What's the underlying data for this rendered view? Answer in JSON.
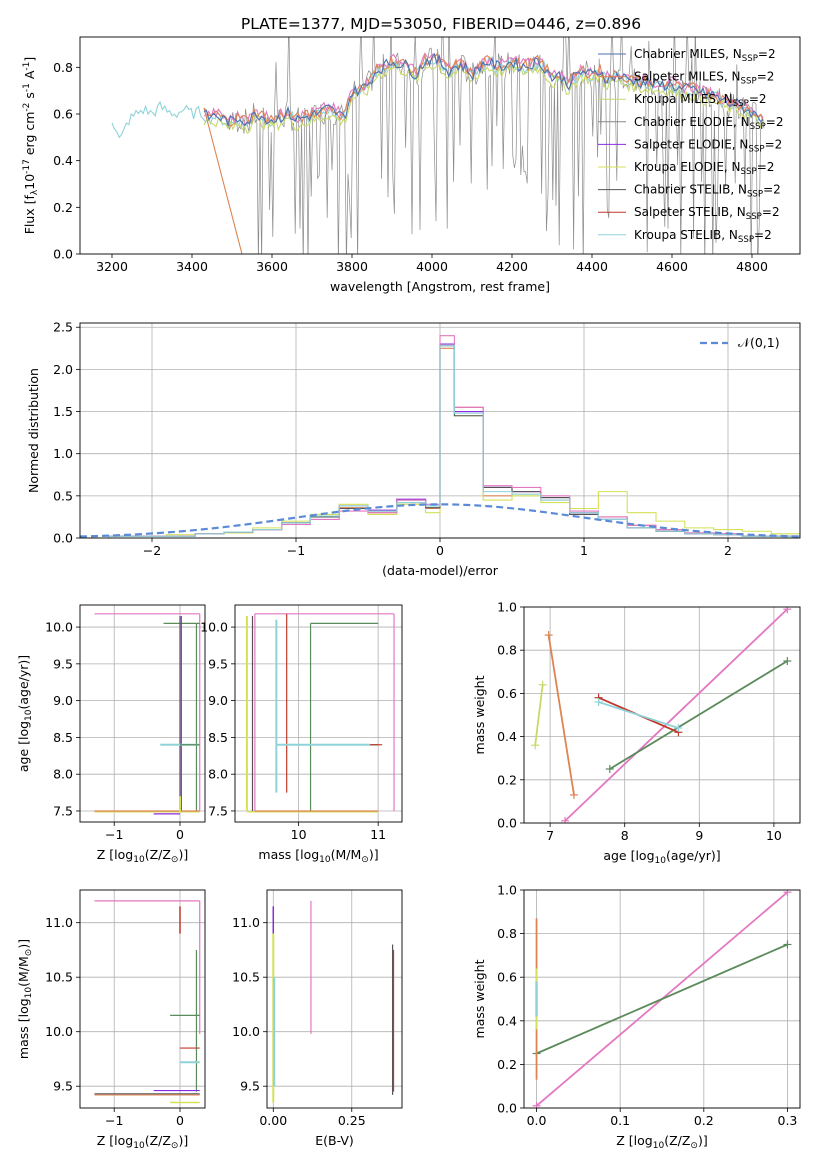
{
  "figure_title": "PLATE=1377, MJD=53050, FIBERID=0446, z=0.896",
  "colors": {
    "Chabrier MILES": "#4c72b0",
    "Salpeter MILES": "#dd8452",
    "Kroupa MILES": "#c9d86a",
    "Chabrier ELODIE": "#888888",
    "Salpeter ELODIE": "#8a2be2",
    "Kroupa ELODIE": "#d4e157",
    "Chabrier STELIB": "#555555",
    "Salpeter STELIB": "#c0392b",
    "Kroupa STELIB": "#8fd3d8",
    "pink": "#e377c2",
    "green": "#5b8a5b",
    "orange": "#dd8452",
    "normal": "#5b8bd6"
  },
  "chart_data": [
    {
      "id": "spectrum",
      "type": "line",
      "title": "PLATE=1377, MJD=53050, FIBERID=0446, z=0.896",
      "xlabel": "wavelength [Angstrom, rest frame]",
      "ylabel": "Flux [f$_\\lambda$10$^{-17}$ erg cm$^{-2}$ s$^{-1}$ A$^{-1}$]",
      "xlim": [
        3120,
        4920
      ],
      "ylim": [
        0,
        0.93
      ],
      "xticks": [
        3200,
        3400,
        3600,
        3800,
        4000,
        4200,
        4400,
        4600,
        4800
      ],
      "yticks": [
        0.0,
        0.2,
        0.4,
        0.6,
        0.8
      ],
      "grid": false,
      "legend_position": "top-right",
      "series": [
        {
          "name": "Chabrier MILES, N$_{SSP}$=2"
        },
        {
          "name": "Salpeter MILES, N$_{SSP}$=2"
        },
        {
          "name": "Kroupa MILES, N$_{SSP}$=2"
        },
        {
          "name": "Chabrier ELODIE, N$_{SSP}$=2"
        },
        {
          "name": "Salpeter ELODIE, N$_{SSP}$=2"
        },
        {
          "name": "Kroupa ELODIE, N$_{SSP}$=2"
        },
        {
          "name": "Chabrier STELIB, N$_{SSP}$=2"
        },
        {
          "name": "Salpeter STELIB, N$_{SSP}$=2"
        },
        {
          "name": "Kroupa STELIB, N$_{SSP}$=2"
        }
      ],
      "data_points": [
        [
          3205,
          0.55
        ],
        [
          3220,
          0.48
        ],
        [
          3240,
          0.57
        ],
        [
          3260,
          0.6
        ],
        [
          3280,
          0.62
        ],
        [
          3300,
          0.6
        ],
        [
          3320,
          0.63
        ],
        [
          3340,
          0.61
        ],
        [
          3360,
          0.6
        ],
        [
          3380,
          0.62
        ],
        [
          3400,
          0.6
        ],
        [
          3420,
          0.61
        ],
        [
          3440,
          0.58
        ],
        [
          3460,
          0.59
        ],
        [
          3480,
          0.57
        ],
        [
          3500,
          0.56
        ],
        [
          3520,
          0.58
        ],
        [
          3540,
          0.56
        ],
        [
          3560,
          0.6
        ],
        [
          3580,
          0.58
        ],
        [
          3600,
          0.57
        ],
        [
          3620,
          0.58
        ],
        [
          3640,
          0.6
        ],
        [
          3660,
          0.57
        ],
        [
          3680,
          0.58
        ],
        [
          3700,
          0.59
        ],
        [
          3720,
          0.6
        ],
        [
          3740,
          0.62
        ],
        [
          3760,
          0.6
        ],
        [
          3780,
          0.58
        ],
        [
          3800,
          0.69
        ],
        [
          3820,
          0.7
        ],
        [
          3840,
          0.72
        ],
        [
          3860,
          0.78
        ],
        [
          3880,
          0.8
        ],
        [
          3900,
          0.82
        ],
        [
          3920,
          0.81
        ],
        [
          3940,
          0.8
        ],
        [
          3960,
          0.76
        ],
        [
          3980,
          0.82
        ],
        [
          4000,
          0.83
        ],
        [
          4020,
          0.82
        ],
        [
          4040,
          0.78
        ],
        [
          4060,
          0.8
        ],
        [
          4080,
          0.8
        ],
        [
          4100,
          0.76
        ],
        [
          4120,
          0.8
        ],
        [
          4140,
          0.82
        ],
        [
          4160,
          0.8
        ],
        [
          4180,
          0.8
        ],
        [
          4200,
          0.82
        ],
        [
          4220,
          0.8
        ],
        [
          4240,
          0.8
        ],
        [
          4260,
          0.82
        ],
        [
          4280,
          0.8
        ],
        [
          4300,
          0.75
        ],
        [
          4320,
          0.76
        ],
        [
          4340,
          0.72
        ],
        [
          4360,
          0.76
        ],
        [
          4380,
          0.78
        ],
        [
          4400,
          0.76
        ],
        [
          4420,
          0.78
        ],
        [
          4440,
          0.74
        ],
        [
          4460,
          0.76
        ],
        [
          4480,
          0.75
        ],
        [
          4500,
          0.74
        ],
        [
          4520,
          0.73
        ],
        [
          4540,
          0.73
        ],
        [
          4560,
          0.72
        ],
        [
          4580,
          0.72
        ],
        [
          4600,
          0.72
        ],
        [
          4620,
          0.7
        ],
        [
          4640,
          0.7
        ],
        [
          4660,
          0.7
        ],
        [
          4680,
          0.68
        ],
        [
          4700,
          0.68
        ],
        [
          4720,
          0.66
        ],
        [
          4740,
          0.64
        ],
        [
          4760,
          0.64
        ],
        [
          4780,
          0.62
        ],
        [
          4800,
          0.6
        ],
        [
          4820,
          0.58
        ]
      ]
    },
    {
      "id": "residuals",
      "type": "line",
      "xlabel": "(data-model)/error",
      "ylabel": "Normed distribution",
      "xlim": [
        -2.5,
        2.5
      ],
      "ylim": [
        0,
        2.55
      ],
      "xticks": [
        -2,
        -1,
        0,
        1,
        2
      ],
      "yticks": [
        0.0,
        0.5,
        1.0,
        1.5,
        2.0,
        2.5
      ],
      "grid": true,
      "legend_position": "top-right",
      "legend": "$\\mathcal{N}(0,1)$",
      "bin_edges": [
        -2.5,
        -2.3,
        -2.1,
        -1.9,
        -1.7,
        -1.5,
        -1.3,
        -1.1,
        -0.9,
        -0.7,
        -0.5,
        -0.3,
        -0.1,
        0.0,
        0.1,
        0.3,
        0.5,
        0.7,
        0.9,
        1.1,
        1.3,
        1.5,
        1.7,
        1.9,
        2.1,
        2.3,
        2.5
      ],
      "series": [
        {
          "name": "Salpeter MILES",
          "color": "#dd8452",
          "values": [
            0.0,
            0.02,
            0.02,
            0.02,
            0.05,
            0.07,
            0.1,
            0.18,
            0.26,
            0.36,
            0.3,
            0.42,
            0.35,
            2.25,
            1.55,
            0.5,
            0.55,
            0.45,
            0.3,
            0.25,
            0.15,
            0.08,
            0.06,
            0.05,
            0.02,
            0.02
          ]
        },
        {
          "name": "Kroupa MILES",
          "color": "#d4e157",
          "values": [
            0.0,
            0.02,
            0.02,
            0.04,
            0.05,
            0.06,
            0.12,
            0.2,
            0.28,
            0.4,
            0.28,
            0.4,
            0.3,
            2.3,
            1.45,
            0.45,
            0.5,
            0.42,
            0.35,
            0.55,
            0.3,
            0.2,
            0.12,
            0.1,
            0.08,
            0.05
          ]
        },
        {
          "name": "Salpeter ELODIE",
          "color": "#8a2be2",
          "values": [
            0.0,
            0.02,
            0.02,
            0.02,
            0.05,
            0.07,
            0.1,
            0.18,
            0.25,
            0.38,
            0.33,
            0.46,
            0.38,
            2.3,
            1.5,
            0.6,
            0.55,
            0.48,
            0.3,
            0.22,
            0.12,
            0.08,
            0.05,
            0.04,
            0.02,
            0.02
          ]
        },
        {
          "name": "Chabrier STELIB",
          "color": "#555555",
          "values": [
            0.0,
            0.02,
            0.02,
            0.02,
            0.05,
            0.07,
            0.1,
            0.18,
            0.25,
            0.35,
            0.32,
            0.45,
            0.36,
            2.28,
            1.45,
            0.6,
            0.55,
            0.48,
            0.28,
            0.22,
            0.12,
            0.08,
            0.05,
            0.04,
            0.02,
            0.02
          ]
        },
        {
          "name": "pink",
          "color": "#e377c2",
          "values": [
            0.0,
            0.02,
            0.02,
            0.02,
            0.05,
            0.07,
            0.1,
            0.16,
            0.22,
            0.32,
            0.3,
            0.45,
            0.4,
            2.4,
            1.55,
            0.62,
            0.6,
            0.5,
            0.32,
            0.25,
            0.15,
            0.1,
            0.06,
            0.05,
            0.02,
            0.02
          ]
        },
        {
          "name": "Kroupa STELIB",
          "color": "#8fd3d8",
          "values": [
            0.0,
            0.02,
            0.02,
            0.02,
            0.05,
            0.07,
            0.1,
            0.18,
            0.26,
            0.38,
            0.32,
            0.42,
            0.38,
            2.28,
            1.48,
            0.55,
            0.52,
            0.45,
            0.3,
            0.22,
            0.12,
            0.08,
            0.05,
            0.04,
            0.02,
            0.02
          ]
        }
      ]
    },
    {
      "id": "z_age",
      "type": "line",
      "xlabel": "Z [log$_{10}$($Z/Z_\\odot$)]",
      "ylabel": "age  [log$_{10}$($age/yr$)]",
      "xlim": [
        -1.52,
        0.38
      ],
      "ylim": [
        7.35,
        10.3
      ],
      "xticks": [
        -1,
        0
      ],
      "yticks": [
        7.5,
        8.0,
        8.5,
        9.0,
        9.5,
        10.0
      ],
      "grid": true
    },
    {
      "id": "mass_age",
      "type": "line",
      "xlabel": "mass [log$_{10}$($M/M_\\odot$)]",
      "xlim": [
        9.2,
        11.3
      ],
      "ylim": [
        7.35,
        10.3
      ],
      "xticks": [
        10,
        11
      ],
      "yticks": [
        7.5,
        8.0,
        8.5,
        9.0,
        9.5,
        10.0
      ],
      "grid": true
    },
    {
      "id": "age_weight",
      "type": "line",
      "xlabel": "age  [log$_{10}$($age/yr$)]",
      "ylabel": "mass weight",
      "xlim": [
        6.65,
        10.35
      ],
      "ylim": [
        0,
        1.0
      ],
      "xticks": [
        7,
        8,
        9,
        10
      ],
      "yticks": [
        0.0,
        0.2,
        0.4,
        0.6,
        0.8,
        1.0
      ],
      "grid": true,
      "series": [
        {
          "name": "pink",
          "color": "#e377c2",
          "points": [
            [
              7.2,
              0.01
            ],
            [
              10.18,
              0.99
            ]
          ]
        },
        {
          "name": "green",
          "color": "#5b8a5b",
          "points": [
            [
              7.8,
              0.25
            ],
            [
              10.18,
              0.75
            ]
          ]
        },
        {
          "name": "orange",
          "color": "#dd8452",
          "points": [
            [
              6.98,
              0.87
            ],
            [
              7.32,
              0.13
            ]
          ]
        },
        {
          "name": "yellow",
          "color": "#c9d86a",
          "points": [
            [
              6.8,
              0.36
            ],
            [
              6.9,
              0.64
            ]
          ]
        },
        {
          "name": "red",
          "color": "#c0392b",
          "points": [
            [
              7.65,
              0.58
            ],
            [
              8.72,
              0.42
            ]
          ]
        },
        {
          "name": "cyan",
          "color": "#8fd3d8",
          "points": [
            [
              7.65,
              0.56
            ],
            [
              8.72,
              0.44
            ]
          ]
        }
      ]
    },
    {
      "id": "z_mass",
      "type": "line",
      "xlabel": "Z [log$_{10}$($Z/Z_\\odot$)]",
      "ylabel": "mass [log$_{10}$($M/M_\\odot$)]",
      "xlim": [
        -1.52,
        0.38
      ],
      "ylim": [
        9.3,
        11.3
      ],
      "xticks": [
        -1,
        0
      ],
      "yticks": [
        9.5,
        10.0,
        10.5,
        11.0
      ],
      "grid": true
    },
    {
      "id": "ebv_mass",
      "type": "line",
      "xlabel": "E(B-V)",
      "xlim": [
        -0.02,
        0.41
      ],
      "ylim": [
        9.3,
        11.3
      ],
      "xticks": [
        0.0,
        0.25
      ],
      "yticks": [
        9.5,
        10.0,
        10.5,
        11.0
      ],
      "grid": true
    },
    {
      "id": "z_weight",
      "type": "line",
      "xlabel": "Z [log$_{10}$($Z/Z_\\odot$)]",
      "ylabel": "mass weight",
      "xlim": [
        -0.015,
        0.315
      ],
      "ylim": [
        0,
        1.0
      ],
      "xticks": [
        0.0,
        0.1,
        0.2,
        0.3
      ],
      "yticks": [
        0.0,
        0.2,
        0.4,
        0.6,
        0.8,
        1.0
      ],
      "grid": true,
      "series": [
        {
          "name": "pink",
          "color": "#e377c2",
          "points": [
            [
              0.0,
              0.01
            ],
            [
              0.3,
              0.99
            ]
          ]
        },
        {
          "name": "green",
          "color": "#5b8a5b",
          "points": [
            [
              0.0,
              0.25
            ],
            [
              0.3,
              0.75
            ]
          ]
        }
      ]
    }
  ]
}
